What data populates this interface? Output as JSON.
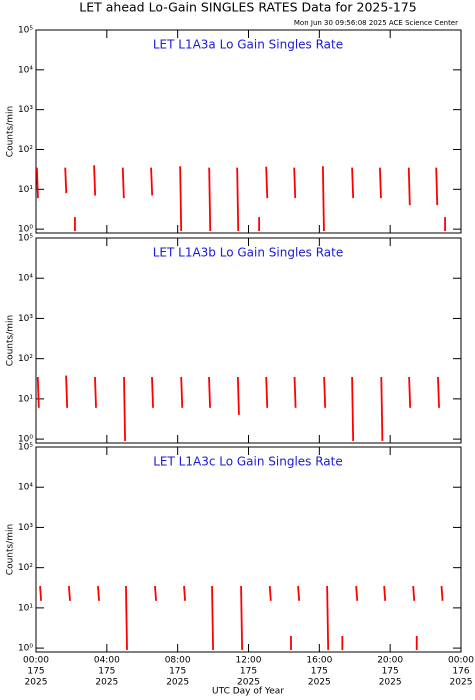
{
  "title": "LET ahead Lo-Gain SINGLES RATES Data for 2025-175",
  "subtitle": "Mon Jun 30 09:56:08 2025 ACE Science Center",
  "xaxis": {
    "label": "UTC Day of Year",
    "xlim": [
      0,
      24
    ],
    "ticks": [
      {
        "value": 0,
        "label": "00:00",
        "day": "175",
        "year": "2025"
      },
      {
        "value": 4,
        "label": "04:00",
        "day": "175",
        "year": "2025"
      },
      {
        "value": 8,
        "label": "08:00",
        "day": "175",
        "year": "2025"
      },
      {
        "value": 12,
        "label": "12:00",
        "day": "175",
        "year": "2025"
      },
      {
        "value": 16,
        "label": "16:00",
        "day": "175",
        "year": "2025"
      },
      {
        "value": 20,
        "label": "20:00",
        "day": "175",
        "year": "2025"
      },
      {
        "value": 24,
        "label": "00:00",
        "day": "176",
        "year": "2025"
      }
    ]
  },
  "chart_data": [
    {
      "type": "line",
      "title": "LET L1A3a Lo Gain Singles Rate",
      "ylabel": "Counts/min",
      "log_y": true,
      "ylim": [
        0.8,
        100000
      ],
      "yticks": [
        {
          "value": 1,
          "label": "10⁰"
        },
        {
          "value": 10,
          "label": "10¹"
        },
        {
          "value": 100,
          "label": "10²"
        },
        {
          "value": 1000,
          "label": "10³"
        },
        {
          "value": 10000,
          "label": "10⁴"
        },
        {
          "value": 100000,
          "label": "10⁵"
        }
      ],
      "series": [
        {
          "color": "#ff0000",
          "x": [
            0.05,
            0.11,
            null,
            1.65,
            1.71,
            null,
            3.28,
            3.34,
            null,
            4.9,
            4.96,
            null,
            6.5,
            6.56,
            null,
            8.14,
            8.2,
            null,
            9.78,
            9.84,
            null,
            11.36,
            11.42,
            null,
            13.0,
            13.06,
            null,
            14.58,
            14.64,
            null,
            16.2,
            16.26,
            null,
            17.85,
            17.91,
            null,
            19.42,
            19.48,
            null,
            21.05,
            21.11,
            null,
            22.6,
            22.66,
            null,
            2.2,
            2.2,
            null,
            12.6,
            12.6,
            null,
            23.1,
            23.1
          ],
          "values": [
            35,
            6,
            null,
            35,
            8,
            null,
            40,
            7,
            null,
            35,
            6,
            null,
            35,
            7,
            null,
            38,
            0.9,
            null,
            35,
            0.9,
            null,
            35,
            0.9,
            null,
            37,
            6,
            null,
            35,
            6,
            null,
            38,
            0.9,
            null,
            35,
            6,
            null,
            35,
            6,
            null,
            35,
            4,
            null,
            35,
            4,
            null,
            0.9,
            2,
            null,
            0.9,
            2,
            null,
            0.9,
            2
          ]
        }
      ]
    },
    {
      "type": "line",
      "title": "LET L1A3b Lo Gain Singles Rate",
      "ylabel": "Counts/min",
      "log_y": true,
      "ylim": [
        0.8,
        100000
      ],
      "yticks": [
        {
          "value": 1,
          "label": "10⁰"
        },
        {
          "value": 10,
          "label": "10¹"
        },
        {
          "value": 100,
          "label": "10²"
        },
        {
          "value": 1000,
          "label": "10³"
        },
        {
          "value": 10000,
          "label": "10⁴"
        },
        {
          "value": 100000,
          "label": "10⁵"
        }
      ],
      "series": [
        {
          "color": "#ff0000",
          "x": [
            0.1,
            0.16,
            null,
            1.7,
            1.76,
            null,
            3.33,
            3.39,
            null,
            4.97,
            5.03,
            null,
            6.55,
            6.61,
            null,
            8.2,
            8.26,
            null,
            9.77,
            9.83,
            null,
            11.4,
            11.46,
            null,
            13.0,
            13.06,
            null,
            14.6,
            14.66,
            null,
            16.27,
            16.33,
            null,
            17.85,
            17.91,
            null,
            19.5,
            19.56,
            null,
            21.07,
            21.13,
            null,
            22.7,
            22.76
          ],
          "values": [
            35,
            6,
            null,
            38,
            6,
            null,
            35,
            6,
            null,
            35,
            0.9,
            null,
            35,
            6,
            null,
            35,
            6,
            null,
            35,
            6,
            null,
            35,
            4,
            null,
            35,
            6,
            null,
            35,
            6,
            null,
            35,
            6,
            null,
            35,
            0.9,
            null,
            35,
            0.9,
            null,
            35,
            6,
            null,
            35,
            6
          ]
        }
      ]
    },
    {
      "type": "line",
      "title": "LET L1A3c Lo Gain Singles Rate",
      "ylabel": "Counts/min",
      "log_y": true,
      "ylim": [
        0.8,
        100000
      ],
      "yticks": [
        {
          "value": 1,
          "label": "10⁰"
        },
        {
          "value": 10,
          "label": "10¹"
        },
        {
          "value": 100,
          "label": "10²"
        },
        {
          "value": 1000,
          "label": "10³"
        },
        {
          "value": 10000,
          "label": "10⁴"
        },
        {
          "value": 100000,
          "label": "10⁵"
        }
      ],
      "series": [
        {
          "color": "#ff0000",
          "x": [
            0.23,
            0.29,
            null,
            1.86,
            1.92,
            null,
            3.5,
            3.56,
            null,
            5.08,
            5.14,
            null,
            6.72,
            6.78,
            null,
            8.36,
            8.42,
            null,
            9.94,
            10.0,
            null,
            11.58,
            11.64,
            null,
            13.2,
            13.26,
            null,
            14.8,
            14.86,
            null,
            16.44,
            16.5,
            null,
            18.08,
            18.14,
            null,
            19.66,
            19.72,
            null,
            21.3,
            21.36,
            null,
            22.9,
            22.96,
            null,
            14.4,
            14.4,
            null,
            17.3,
            17.3,
            null,
            21.5,
            21.5
          ],
          "values": [
            35,
            15,
            null,
            35,
            15,
            null,
            35,
            15,
            null,
            35,
            0.9,
            null,
            35,
            15,
            null,
            35,
            15,
            null,
            35,
            0.9,
            null,
            35,
            0.9,
            null,
            35,
            15,
            null,
            35,
            15,
            null,
            35,
            0.9,
            null,
            35,
            15,
            null,
            35,
            15,
            null,
            35,
            15,
            null,
            35,
            15,
            null,
            0.9,
            2,
            null,
            0.9,
            2,
            null,
            0.9,
            2
          ]
        }
      ]
    }
  ]
}
